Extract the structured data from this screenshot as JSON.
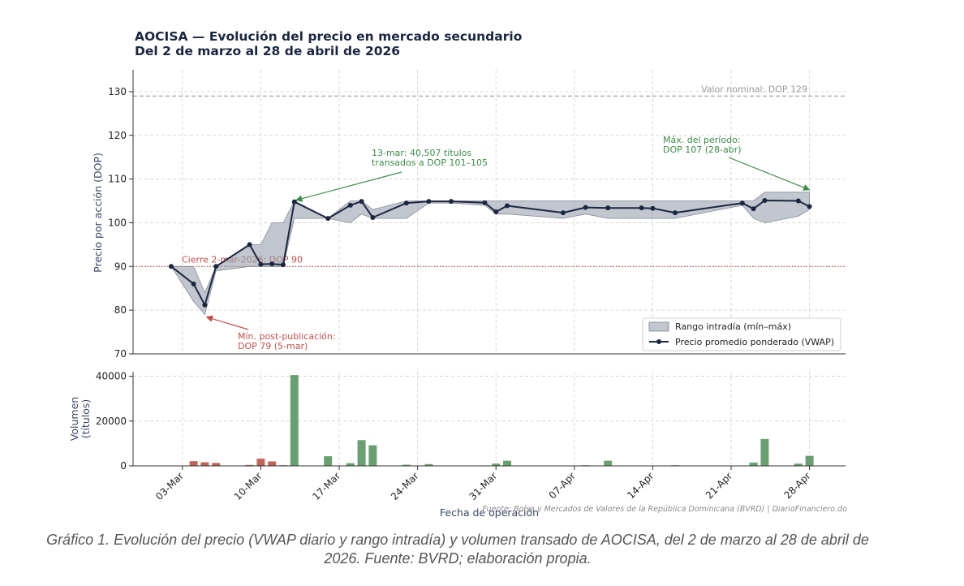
{
  "chart_data": [
    {
      "type": "line",
      "title": "AOCISA — Evolución del precio en mercado secundario",
      "subtitle": "Del 2 de marzo al 28 de abril de 2026",
      "ylabel": "Precio por acción (DOP)",
      "ylim": [
        70,
        135
      ],
      "yticks": [
        "70",
        "80",
        "90",
        "100",
        "110",
        "120",
        "130"
      ],
      "grid": true,
      "legend_position": "lower-right",
      "series": [
        {
          "name": "Precio promedio ponderado (VWAP)",
          "color": "#1b2740",
          "points": [
            [
              "2026-03-02",
              90
            ],
            [
              "2026-03-04",
              86
            ],
            [
              "2026-03-05",
              81.2
            ],
            [
              "2026-03-06",
              90
            ],
            [
              "2026-03-09",
              95
            ],
            [
              "2026-03-10",
              90.5
            ],
            [
              "2026-03-11",
              90.6
            ],
            [
              "2026-03-12",
              90.4
            ],
            [
              "2026-03-13",
              104.8
            ],
            [
              "2026-03-16",
              101
            ],
            [
              "2026-03-18",
              104
            ],
            [
              "2026-03-19",
              104.9
            ],
            [
              "2026-03-20",
              101.2
            ],
            [
              "2026-03-23",
              104.5
            ],
            [
              "2026-03-25",
              104.9
            ],
            [
              "2026-03-27",
              104.9
            ],
            [
              "2026-03-30",
              104.6
            ],
            [
              "2026-03-31",
              102.5
            ],
            [
              "2026-04-01",
              103.9
            ],
            [
              "2026-04-06",
              102.3
            ],
            [
              "2026-04-08",
              103.5
            ],
            [
              "2026-04-10",
              103.4
            ],
            [
              "2026-04-13",
              103.4
            ],
            [
              "2026-04-14",
              103.3
            ],
            [
              "2026-04-16",
              102.3
            ],
            [
              "2026-04-22",
              104.5
            ],
            [
              "2026-04-23",
              103.2
            ],
            [
              "2026-04-24",
              105.1
            ],
            [
              "2026-04-27",
              105
            ],
            [
              "2026-04-28",
              103.7
            ]
          ]
        },
        {
          "name": "Rango intradía (mín–máx)",
          "color": "#9aa0ae",
          "ranges": [
            [
              "2026-03-02",
              90,
              90
            ],
            [
              "2026-03-04",
              82,
              90
            ],
            [
              "2026-03-05",
              79,
              84
            ],
            [
              "2026-03-06",
              89,
              90
            ],
            [
              "2026-03-09",
              90,
              95
            ],
            [
              "2026-03-10",
              90,
              95
            ],
            [
              "2026-03-11",
              90,
              100
            ],
            [
              "2026-03-12",
              90,
              100
            ],
            [
              "2026-03-13",
              101,
              105
            ],
            [
              "2026-03-16",
              101,
              101
            ],
            [
              "2026-03-18",
              100,
              105
            ],
            [
              "2026-03-19",
              102,
              105
            ],
            [
              "2026-03-20",
              101,
              103
            ],
            [
              "2026-03-23",
              101,
              105
            ],
            [
              "2026-03-25",
              104.5,
              105
            ],
            [
              "2026-03-27",
              104.5,
              105
            ],
            [
              "2026-03-30",
              104,
              105
            ],
            [
              "2026-03-31",
              102,
              105
            ],
            [
              "2026-04-01",
              102,
              105
            ],
            [
              "2026-04-06",
              101,
              105
            ],
            [
              "2026-04-08",
              102,
              105
            ],
            [
              "2026-04-10",
              101,
              105
            ],
            [
              "2026-04-13",
              101,
              105
            ],
            [
              "2026-04-14",
              101,
              105
            ],
            [
              "2026-04-16",
              101,
              105
            ],
            [
              "2026-04-22",
              104,
              105
            ],
            [
              "2026-04-23",
              101,
              105
            ],
            [
              "2026-04-24",
              100,
              107
            ],
            [
              "2026-04-27",
              101.5,
              107
            ],
            [
              "2026-04-28",
              103,
              107
            ]
          ]
        }
      ],
      "reference_lines": [
        {
          "label": "Valor nominal: DOP 129",
          "value": 129,
          "color": "#999999",
          "style": "dashed"
        },
        {
          "label": "Cierre 2-mar-2026: DOP 90",
          "value": 90,
          "color": "#c0504d",
          "style": "dotted"
        }
      ],
      "annotations": [
        {
          "lines": [
            "13-mar: 40,507 títulos",
            "transados a DOP 101–105"
          ],
          "x": "2026-03-13",
          "y": 104.8,
          "color": "#3d8b4a"
        },
        {
          "lines": [
            "Máx. del período:",
            "DOP 107 (28-abr)"
          ],
          "x": "2026-04-28",
          "y": 107,
          "color": "#3d8b4a"
        },
        {
          "lines": [
            "Mín. post-publicación:",
            "DOP 79 (5-mar)"
          ],
          "x": "2026-03-05",
          "y": 79,
          "color": "#c0504d"
        }
      ]
    },
    {
      "type": "bar",
      "ylabel_lines": [
        "Volumen",
        "(títulos)"
      ],
      "xlabel": "Fecha de operación",
      "ylim": [
        0,
        42000
      ],
      "yticks": [
        "0",
        "20000",
        "40000"
      ],
      "xticks": [
        "03-Mar",
        "10-Mar",
        "17-Mar",
        "24-Mar",
        "31-Mar",
        "07-Apr",
        "14-Apr",
        "21-Apr",
        "28-Apr"
      ],
      "colors": {
        "down": "#c0645a",
        "up": "#6a9f72"
      },
      "bars": [
        [
          "2026-03-02",
          0,
          "down"
        ],
        [
          "2026-03-04",
          2100,
          "down"
        ],
        [
          "2026-03-05",
          1600,
          "down"
        ],
        [
          "2026-03-06",
          1300,
          "down"
        ],
        [
          "2026-03-09",
          400,
          "down"
        ],
        [
          "2026-03-10",
          3200,
          "down"
        ],
        [
          "2026-03-11",
          2000,
          "down"
        ],
        [
          "2026-03-12",
          300,
          "down"
        ],
        [
          "2026-03-13",
          40507,
          "up"
        ],
        [
          "2026-03-16",
          4300,
          "up"
        ],
        [
          "2026-03-18",
          1200,
          "up"
        ],
        [
          "2026-03-19",
          11500,
          "up"
        ],
        [
          "2026-03-20",
          9200,
          "up"
        ],
        [
          "2026-03-23",
          500,
          "up"
        ],
        [
          "2026-03-25",
          800,
          "up"
        ],
        [
          "2026-03-27",
          100,
          "up"
        ],
        [
          "2026-03-30",
          200,
          "up"
        ],
        [
          "2026-03-31",
          1000,
          "up"
        ],
        [
          "2026-04-01",
          2300,
          "up"
        ],
        [
          "2026-04-06",
          100,
          "up"
        ],
        [
          "2026-04-08",
          300,
          "up"
        ],
        [
          "2026-04-10",
          2300,
          "up"
        ],
        [
          "2026-04-13",
          100,
          "up"
        ],
        [
          "2026-04-14",
          100,
          "up"
        ],
        [
          "2026-04-16",
          300,
          "up"
        ],
        [
          "2026-04-22",
          100,
          "up"
        ],
        [
          "2026-04-23",
          1500,
          "up"
        ],
        [
          "2026-04-24",
          12000,
          "up"
        ],
        [
          "2026-04-27",
          1000,
          "up"
        ],
        [
          "2026-04-28",
          4500,
          "up"
        ]
      ],
      "source_note": "Fuente: Bolsa y Mercados de Valores de la República Dominicana (BVRD) | DiarioFinanciero.do"
    }
  ],
  "caption": "Gráfico 1. Evolución del precio (VWAP diario y rango intradía) y volumen transado de AOCISA, del 2 de marzo al 28 de abril de 2026. Fuente: BVRD; elaboración propia."
}
